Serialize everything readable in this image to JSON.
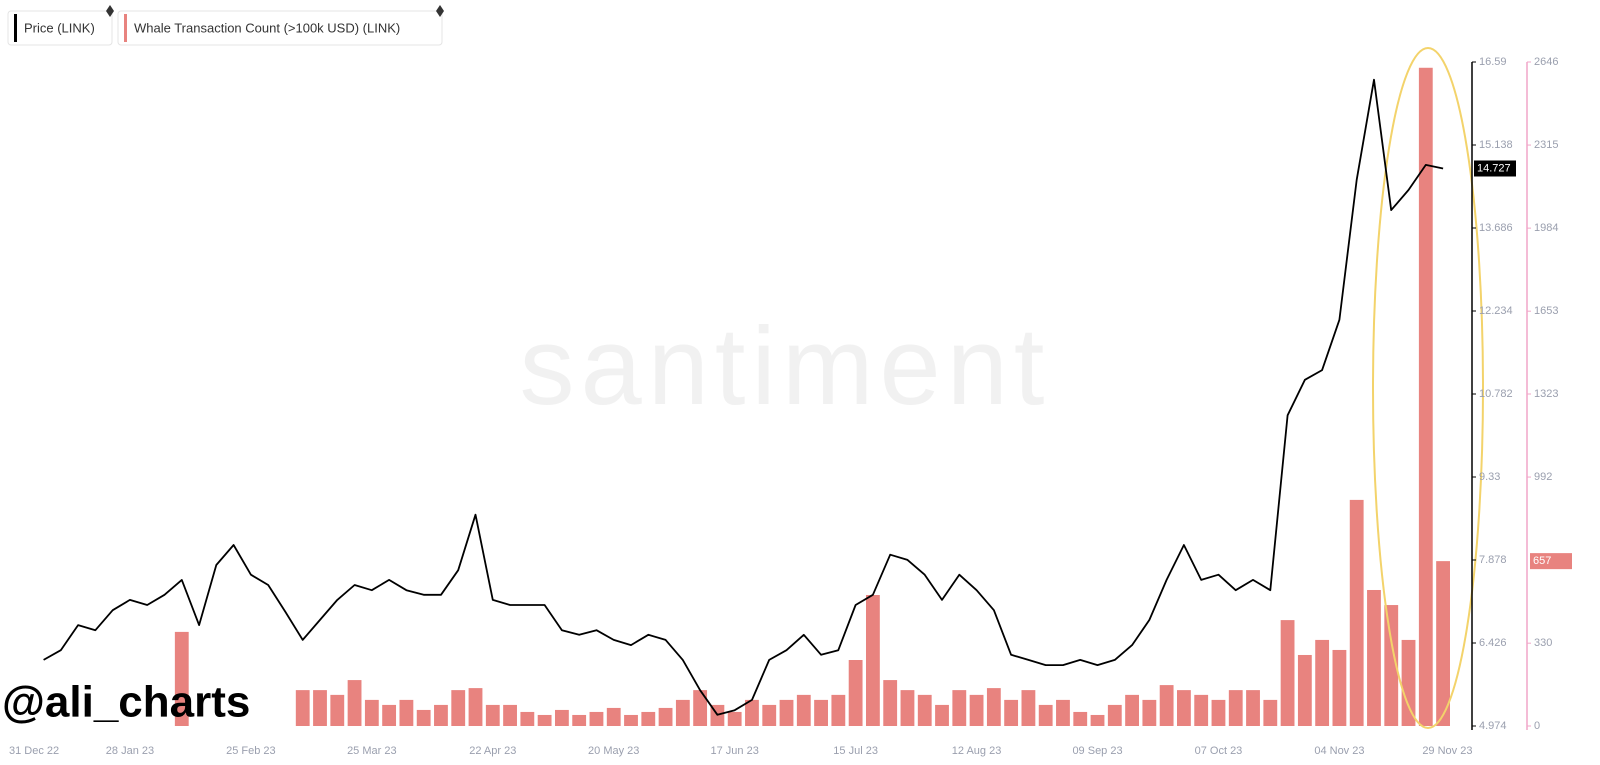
{
  "chart_data": {
    "type": "line-bar",
    "watermark": "santiment",
    "credit": "@ali_charts",
    "x": [
      "2023-01-08",
      "2023-01-12",
      "2023-01-16",
      "2023-01-20",
      "2023-01-24",
      "2023-01-28",
      "2023-02-01",
      "2023-02-05",
      "2023-02-09",
      "2023-02-13",
      "2023-02-17",
      "2023-02-21",
      "2023-02-25",
      "2023-03-01",
      "2023-03-05",
      "2023-03-09",
      "2023-03-13",
      "2023-03-17",
      "2023-03-21",
      "2023-03-25",
      "2023-03-29",
      "2023-04-02",
      "2023-04-06",
      "2023-04-10",
      "2023-04-14",
      "2023-04-18",
      "2023-04-22",
      "2023-04-26",
      "2023-04-30",
      "2023-05-04",
      "2023-05-08",
      "2023-05-12",
      "2023-05-16",
      "2023-05-20",
      "2023-05-24",
      "2023-05-28",
      "2023-06-01",
      "2023-06-05",
      "2023-06-09",
      "2023-06-13",
      "2023-06-17",
      "2023-06-21",
      "2023-06-25",
      "2023-06-29",
      "2023-07-03",
      "2023-07-07",
      "2023-07-11",
      "2023-07-15",
      "2023-07-19",
      "2023-07-23",
      "2023-07-27",
      "2023-07-31",
      "2023-08-04",
      "2023-08-08",
      "2023-08-12",
      "2023-08-16",
      "2023-08-20",
      "2023-08-24",
      "2023-08-28",
      "2023-09-01",
      "2023-09-05",
      "2023-09-09",
      "2023-09-13",
      "2023-09-17",
      "2023-09-21",
      "2023-09-25",
      "2023-09-29",
      "2023-10-03",
      "2023-10-07",
      "2023-10-11",
      "2023-10-15",
      "2023-10-19",
      "2023-10-23",
      "2023-10-27",
      "2023-10-31",
      "2023-11-04",
      "2023-11-08",
      "2023-11-12",
      "2023-11-16",
      "2023-11-20",
      "2023-11-24",
      "2023-11-28"
    ],
    "xlim": [
      "2022-12-31",
      "2023-12-04"
    ],
    "xticks": [
      {
        "value": "2022-12-31",
        "label": "31 Dec 22"
      },
      {
        "value": "2023-01-28",
        "label": "28 Jan 23"
      },
      {
        "value": "2023-02-25",
        "label": "25 Feb 23"
      },
      {
        "value": "2023-03-25",
        "label": "25 Mar 23"
      },
      {
        "value": "2023-04-22",
        "label": "22 Apr 23"
      },
      {
        "value": "2023-05-20",
        "label": "20 May 23"
      },
      {
        "value": "2023-06-17",
        "label": "17 Jun 23"
      },
      {
        "value": "2023-07-15",
        "label": "15 Jul 23"
      },
      {
        "value": "2023-08-12",
        "label": "12 Aug 23"
      },
      {
        "value": "2023-09-09",
        "label": "09 Sep 23"
      },
      {
        "value": "2023-10-07",
        "label": "07 Oct 23"
      },
      {
        "value": "2023-11-04",
        "label": "04 Nov 23"
      },
      {
        "value": "2023-11-29",
        "label": "29 Nov 23"
      }
    ],
    "ylim": [
      4.974,
      16.59
    ],
    "yticks": [
      4.974,
      6.426,
      7.878,
      9.33,
      10.782,
      12.234,
      13.686,
      15.138,
      16.59
    ],
    "y2lim": [
      0,
      2646
    ],
    "y2ticks": [
      0,
      330,
      992,
      1323,
      1653,
      1984,
      2315,
      2646
    ],
    "series": [
      {
        "name": "Price (LINK)",
        "color": "#000000",
        "type": "line",
        "values": [
          6.13,
          6.3,
          6.74,
          6.65,
          7.0,
          7.18,
          7.09,
          7.27,
          7.53,
          6.74,
          7.79,
          8.14,
          7.62,
          7.44,
          6.97,
          6.48,
          6.83,
          7.18,
          7.44,
          7.35,
          7.53,
          7.35,
          7.27,
          7.27,
          7.7,
          8.67,
          7.18,
          7.09,
          7.09,
          7.09,
          6.65,
          6.57,
          6.65,
          6.48,
          6.39,
          6.57,
          6.48,
          6.13,
          5.6,
          5.17,
          5.25,
          5.43,
          6.13,
          6.3,
          6.57,
          6.22,
          6.3,
          7.09,
          7.27,
          7.97,
          7.88,
          7.62,
          7.18,
          7.62,
          7.35,
          7.0,
          6.22,
          6.13,
          6.04,
          6.04,
          6.13,
          6.04,
          6.13,
          6.39,
          6.83,
          7.53,
          8.14,
          7.53,
          7.62,
          7.35,
          7.53,
          7.35,
          10.41,
          11.03,
          11.2,
          12.08,
          14.53,
          16.28,
          14.0,
          14.35,
          14.79,
          14.727
        ]
      },
      {
        "name": "Whale Transaction Count (>100k USD) (LINK)",
        "color": "#e8837f",
        "type": "bar",
        "axis": "y2",
        "values": [
          null,
          null,
          null,
          null,
          null,
          null,
          null,
          null,
          375,
          null,
          null,
          null,
          null,
          null,
          null,
          143,
          143,
          124,
          183,
          104,
          84,
          104,
          64,
          84,
          143,
          151,
          84,
          84,
          56,
          44,
          64,
          44,
          56,
          72,
          44,
          56,
          72,
          104,
          143,
          84,
          56,
          104,
          84,
          104,
          124,
          104,
          124,
          263,
          522,
          183,
          143,
          124,
          84,
          143,
          124,
          151,
          104,
          143,
          84,
          104,
          56,
          44,
          84,
          124,
          104,
          163,
          143,
          124,
          104,
          143,
          143,
          104,
          422,
          283,
          343,
          303,
          901,
          542,
          482,
          343,
          2623,
          657
        ]
      }
    ]
  }
}
